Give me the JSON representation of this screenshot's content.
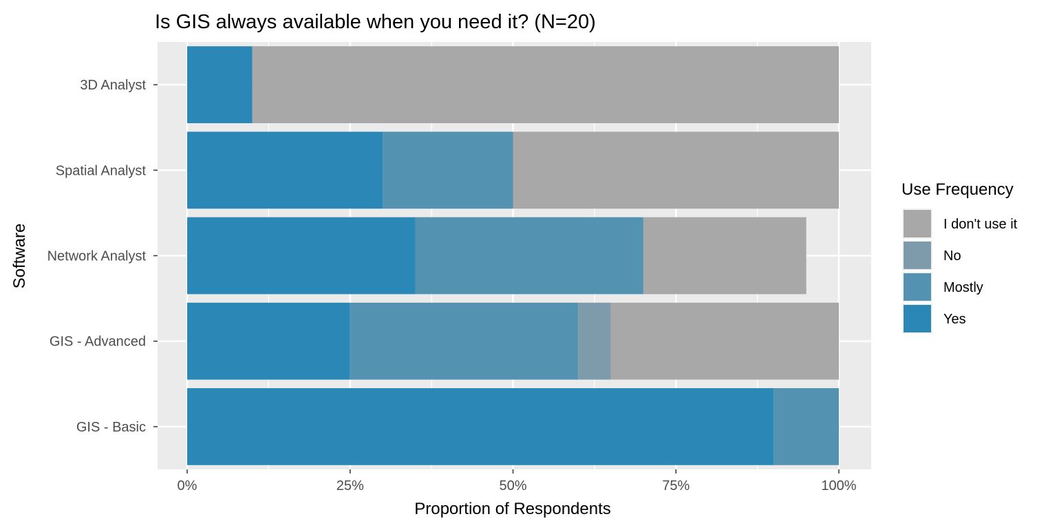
{
  "chart_data": {
    "type": "bar",
    "orientation": "horizontal",
    "stacked": true,
    "title": "Is GIS  always available when you need it? (N=20)",
    "xlabel": "Proportion of Respondents",
    "ylabel": "Software",
    "xlim": [
      0,
      1
    ],
    "x_ticks": [
      {
        "value": 0,
        "label": "0%"
      },
      {
        "value": 0.25,
        "label": "25%"
      },
      {
        "value": 0.5,
        "label": "50%"
      },
      {
        "value": 0.75,
        "label": "75%"
      },
      {
        "value": 1,
        "label": "100%"
      }
    ],
    "categories": [
      "3D Analyst",
      "Spatial Analyst",
      "Network Analyst",
      "GIS - Advanced",
      "GIS - Basic"
    ],
    "series": [
      {
        "name": "Yes",
        "color": "#2b87b5",
        "values": [
          0.1,
          0.3,
          0.35,
          0.25,
          0.9
        ]
      },
      {
        "name": "Mostly",
        "color": "#5392b1",
        "values": [
          0.0,
          0.2,
          0.35,
          0.35,
          0.1
        ]
      },
      {
        "name": "No",
        "color": "#7e9bab",
        "values": [
          0.0,
          0.0,
          0.0,
          0.05,
          0.0
        ]
      },
      {
        "name": "I don't use it",
        "color": "#a8a8a8",
        "values": [
          0.9,
          0.5,
          0.25,
          0.35,
          0.0
        ]
      }
    ],
    "legend": {
      "title": "Use Frequency",
      "position": "right",
      "order": [
        "I don't use it",
        "No",
        "Mostly",
        "Yes"
      ]
    },
    "grid": true,
    "panel_background": "#ebebeb",
    "grid_color": "#ffffff"
  }
}
